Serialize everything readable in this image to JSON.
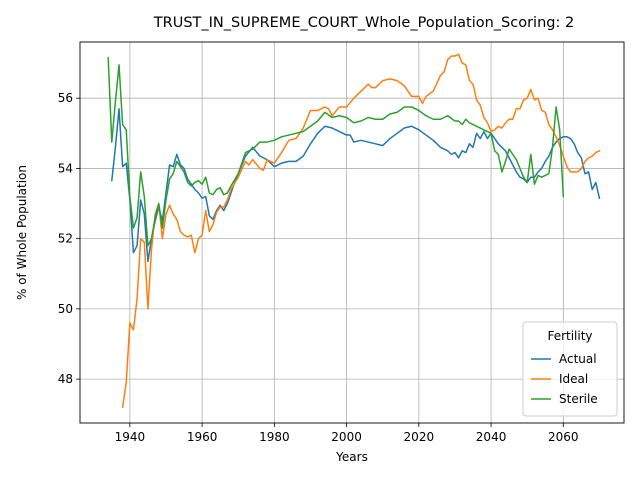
{
  "chart_data": {
    "type": "line",
    "title": "TRUST_IN_SUPREME_COURT_Whole_Population_Scoring: 2",
    "xlabel": "Years",
    "ylabel": "% of Whole Population",
    "xlim": [
      1926.2,
      2076.8
    ],
    "ylim": [
      46.75,
      57.6
    ],
    "xticks": [
      1940,
      1960,
      1980,
      2000,
      2020,
      2040,
      2060
    ],
    "yticks": [
      48,
      50,
      52,
      54,
      56
    ],
    "grid": true,
    "legend": {
      "title": "Fertility",
      "placement": "lower right"
    },
    "series": [
      {
        "name": "Actual",
        "color": "#1f77b4",
        "points": [
          [
            1935,
            53.65
          ],
          [
            1936,
            54.6
          ],
          [
            1937,
            55.7
          ],
          [
            1938,
            54.05
          ],
          [
            1939,
            54.15
          ],
          [
            1940,
            53.1
          ],
          [
            1941,
            51.6
          ],
          [
            1942,
            51.8
          ],
          [
            1943,
            53.1
          ],
          [
            1944,
            52.7
          ],
          [
            1945,
            51.35
          ],
          [
            1946,
            52.0
          ],
          [
            1947,
            52.5
          ],
          [
            1948,
            52.9
          ],
          [
            1949,
            52.5
          ],
          [
            1950,
            53.3
          ],
          [
            1951,
            54.1
          ],
          [
            1952,
            54.05
          ],
          [
            1953,
            54.4
          ],
          [
            1954,
            54.1
          ],
          [
            1955,
            54.0
          ],
          [
            1956,
            53.7
          ],
          [
            1957,
            53.55
          ],
          [
            1958,
            53.4
          ],
          [
            1959,
            53.3
          ],
          [
            1960,
            53.15
          ],
          [
            1961,
            53.2
          ],
          [
            1962,
            52.65
          ],
          [
            1963,
            52.55
          ],
          [
            1964,
            52.8
          ],
          [
            1965,
            52.95
          ],
          [
            1966,
            52.8
          ],
          [
            1967,
            53.0
          ],
          [
            1968,
            53.3
          ],
          [
            1969,
            53.6
          ],
          [
            1970,
            53.85
          ],
          [
            1972,
            54.35
          ],
          [
            1974,
            54.6
          ],
          [
            1976,
            54.35
          ],
          [
            1978,
            54.25
          ],
          [
            1980,
            54.05
          ],
          [
            1982,
            54.15
          ],
          [
            1984,
            54.2
          ],
          [
            1986,
            54.2
          ],
          [
            1988,
            54.35
          ],
          [
            1990,
            54.7
          ],
          [
            1992,
            55.0
          ],
          [
            1994,
            55.2
          ],
          [
            1996,
            55.15
          ],
          [
            1998,
            55.05
          ],
          [
            2000,
            54.95
          ],
          [
            2001,
            54.95
          ],
          [
            2002,
            54.75
          ],
          [
            2004,
            54.8
          ],
          [
            2006,
            54.75
          ],
          [
            2008,
            54.7
          ],
          [
            2010,
            54.65
          ],
          [
            2012,
            54.85
          ],
          [
            2014,
            55.0
          ],
          [
            2016,
            55.15
          ],
          [
            2018,
            55.2
          ],
          [
            2020,
            55.1
          ],
          [
            2022,
            54.95
          ],
          [
            2024,
            54.8
          ],
          [
            2026,
            54.6
          ],
          [
            2028,
            54.5
          ],
          [
            2029,
            54.4
          ],
          [
            2030,
            54.45
          ],
          [
            2031,
            54.3
          ],
          [
            2032,
            54.5
          ],
          [
            2033,
            54.45
          ],
          [
            2034,
            54.7
          ],
          [
            2035,
            54.6
          ],
          [
            2036,
            55.0
          ],
          [
            2037,
            54.85
          ],
          [
            2038,
            55.05
          ],
          [
            2039,
            54.85
          ],
          [
            2040,
            55.0
          ],
          [
            2041,
            54.85
          ],
          [
            2042,
            54.7
          ],
          [
            2043,
            54.6
          ],
          [
            2044,
            54.5
          ],
          [
            2045,
            54.3
          ],
          [
            2046,
            54.1
          ],
          [
            2047,
            53.9
          ],
          [
            2048,
            53.75
          ],
          [
            2049,
            53.7
          ],
          [
            2050,
            53.6
          ],
          [
            2051,
            53.75
          ],
          [
            2052,
            53.75
          ],
          [
            2053,
            53.9
          ],
          [
            2054,
            54.0
          ],
          [
            2055,
            54.2
          ],
          [
            2056,
            54.35
          ],
          [
            2057,
            54.6
          ],
          [
            2058,
            54.75
          ],
          [
            2059,
            54.85
          ],
          [
            2060,
            54.9
          ],
          [
            2061,
            54.9
          ],
          [
            2062,
            54.85
          ],
          [
            2063,
            54.7
          ],
          [
            2064,
            54.45
          ],
          [
            2065,
            54.3
          ],
          [
            2066,
            53.85
          ],
          [
            2067,
            53.9
          ],
          [
            2068,
            53.4
          ],
          [
            2069,
            53.6
          ],
          [
            2070,
            53.15
          ]
        ]
      },
      {
        "name": "Ideal",
        "color": "#ff7f0e",
        "points": [
          [
            1938,
            47.2
          ],
          [
            1939,
            47.9
          ],
          [
            1940,
            49.6
          ],
          [
            1941,
            49.4
          ],
          [
            1942,
            50.3
          ],
          [
            1943,
            52.0
          ],
          [
            1944,
            51.9
          ],
          [
            1945,
            50.0
          ],
          [
            1946,
            51.7
          ],
          [
            1947,
            52.7
          ],
          [
            1948,
            53.0
          ],
          [
            1949,
            52.0
          ],
          [
            1950,
            52.7
          ],
          [
            1951,
            52.95
          ],
          [
            1952,
            52.7
          ],
          [
            1953,
            52.55
          ],
          [
            1954,
            52.2
          ],
          [
            1955,
            52.1
          ],
          [
            1956,
            52.05
          ],
          [
            1957,
            52.1
          ],
          [
            1958,
            51.6
          ],
          [
            1959,
            52.0
          ],
          [
            1960,
            52.1
          ],
          [
            1961,
            52.8
          ],
          [
            1962,
            52.2
          ],
          [
            1963,
            52.4
          ],
          [
            1964,
            52.75
          ],
          [
            1965,
            52.9
          ],
          [
            1966,
            52.9
          ],
          [
            1967,
            53.1
          ],
          [
            1968,
            53.4
          ],
          [
            1970,
            53.75
          ],
          [
            1972,
            54.2
          ],
          [
            1973,
            54.1
          ],
          [
            1974,
            54.25
          ],
          [
            1976,
            54.0
          ],
          [
            1977,
            53.95
          ],
          [
            1978,
            54.25
          ],
          [
            1980,
            54.15
          ],
          [
            1982,
            54.45
          ],
          [
            1984,
            54.8
          ],
          [
            1986,
            54.85
          ],
          [
            1988,
            55.15
          ],
          [
            1990,
            55.65
          ],
          [
            1992,
            55.65
          ],
          [
            1994,
            55.75
          ],
          [
            1995,
            55.7
          ],
          [
            1996,
            55.5
          ],
          [
            1998,
            55.75
          ],
          [
            2000,
            55.75
          ],
          [
            2002,
            56.0
          ],
          [
            2004,
            56.2
          ],
          [
            2006,
            56.4
          ],
          [
            2007,
            56.3
          ],
          [
            2008,
            56.3
          ],
          [
            2010,
            56.5
          ],
          [
            2012,
            56.55
          ],
          [
            2014,
            56.5
          ],
          [
            2016,
            56.35
          ],
          [
            2018,
            56.05
          ],
          [
            2020,
            56.05
          ],
          [
            2021,
            55.85
          ],
          [
            2022,
            56.05
          ],
          [
            2024,
            56.2
          ],
          [
            2026,
            56.65
          ],
          [
            2027,
            56.75
          ],
          [
            2028,
            57.1
          ],
          [
            2029,
            57.2
          ],
          [
            2030,
            57.2
          ],
          [
            2031,
            57.25
          ],
          [
            2032,
            57.0
          ],
          [
            2033,
            56.95
          ],
          [
            2034,
            56.5
          ],
          [
            2035,
            56.4
          ],
          [
            2036,
            55.95
          ],
          [
            2037,
            55.8
          ],
          [
            2038,
            55.45
          ],
          [
            2039,
            55.3
          ],
          [
            2040,
            55.05
          ],
          [
            2041,
            55.1
          ],
          [
            2042,
            55.2
          ],
          [
            2043,
            55.15
          ],
          [
            2044,
            55.3
          ],
          [
            2045,
            55.4
          ],
          [
            2046,
            55.4
          ],
          [
            2047,
            55.7
          ],
          [
            2048,
            55.7
          ],
          [
            2049,
            55.95
          ],
          [
            2050,
            56.0
          ],
          [
            2051,
            56.25
          ],
          [
            2052,
            55.95
          ],
          [
            2053,
            56.0
          ],
          [
            2054,
            55.65
          ],
          [
            2055,
            55.6
          ],
          [
            2056,
            55.25
          ],
          [
            2057,
            55.1
          ],
          [
            2058,
            54.9
          ],
          [
            2059,
            54.65
          ],
          [
            2060,
            54.35
          ],
          [
            2061,
            54.05
          ],
          [
            2062,
            53.9
          ],
          [
            2063,
            53.9
          ],
          [
            2064,
            53.9
          ],
          [
            2065,
            54.0
          ],
          [
            2066,
            54.2
          ],
          [
            2067,
            54.3
          ],
          [
            2068,
            54.35
          ],
          [
            2069,
            54.45
          ],
          [
            2070,
            54.5
          ]
        ]
      },
      {
        "name": "Sterile",
        "color": "#2ca02c",
        "points": [
          [
            1934,
            57.15
          ],
          [
            1935,
            54.75
          ],
          [
            1936,
            55.9
          ],
          [
            1937,
            56.95
          ],
          [
            1938,
            55.25
          ],
          [
            1939,
            55.1
          ],
          [
            1940,
            53.2
          ],
          [
            1941,
            52.3
          ],
          [
            1942,
            52.6
          ],
          [
            1943,
            53.9
          ],
          [
            1944,
            53.2
          ],
          [
            1945,
            51.8
          ],
          [
            1946,
            52.0
          ],
          [
            1947,
            52.6
          ],
          [
            1948,
            53.0
          ],
          [
            1949,
            52.3
          ],
          [
            1950,
            53.1
          ],
          [
            1951,
            53.7
          ],
          [
            1952,
            53.85
          ],
          [
            1953,
            54.2
          ],
          [
            1954,
            54.05
          ],
          [
            1955,
            53.9
          ],
          [
            1956,
            53.6
          ],
          [
            1957,
            53.5
          ],
          [
            1958,
            53.6
          ],
          [
            1959,
            53.65
          ],
          [
            1960,
            53.55
          ],
          [
            1961,
            53.75
          ],
          [
            1962,
            53.3
          ],
          [
            1963,
            53.25
          ],
          [
            1964,
            53.4
          ],
          [
            1965,
            53.45
          ],
          [
            1966,
            53.25
          ],
          [
            1967,
            53.3
          ],
          [
            1968,
            53.5
          ],
          [
            1970,
            53.85
          ],
          [
            1972,
            54.45
          ],
          [
            1974,
            54.55
          ],
          [
            1976,
            54.75
          ],
          [
            1978,
            54.75
          ],
          [
            1980,
            54.8
          ],
          [
            1982,
            54.9
          ],
          [
            1984,
            54.95
          ],
          [
            1986,
            55.0
          ],
          [
            1988,
            55.05
          ],
          [
            1990,
            55.2
          ],
          [
            1992,
            55.35
          ],
          [
            1994,
            55.6
          ],
          [
            1996,
            55.45
          ],
          [
            1998,
            55.5
          ],
          [
            2000,
            55.45
          ],
          [
            2002,
            55.3
          ],
          [
            2004,
            55.35
          ],
          [
            2006,
            55.45
          ],
          [
            2008,
            55.4
          ],
          [
            2010,
            55.4
          ],
          [
            2012,
            55.55
          ],
          [
            2014,
            55.6
          ],
          [
            2016,
            55.75
          ],
          [
            2018,
            55.75
          ],
          [
            2020,
            55.65
          ],
          [
            2022,
            55.5
          ],
          [
            2024,
            55.4
          ],
          [
            2026,
            55.4
          ],
          [
            2028,
            55.5
          ],
          [
            2030,
            55.35
          ],
          [
            2031,
            55.35
          ],
          [
            2032,
            55.25
          ],
          [
            2033,
            55.4
          ],
          [
            2034,
            55.3
          ],
          [
            2036,
            55.2
          ],
          [
            2038,
            55.1
          ],
          [
            2039,
            55.05
          ],
          [
            2040,
            55.0
          ],
          [
            2041,
            54.5
          ],
          [
            2042,
            54.4
          ],
          [
            2043,
            53.9
          ],
          [
            2044,
            54.2
          ],
          [
            2045,
            54.55
          ],
          [
            2046,
            54.4
          ],
          [
            2047,
            54.25
          ],
          [
            2048,
            54.0
          ],
          [
            2049,
            53.75
          ],
          [
            2050,
            53.6
          ],
          [
            2051,
            54.4
          ],
          [
            2052,
            53.55
          ],
          [
            2053,
            53.8
          ],
          [
            2054,
            53.75
          ],
          [
            2055,
            53.8
          ],
          [
            2056,
            53.85
          ],
          [
            2057,
            54.6
          ],
          [
            2058,
            55.75
          ],
          [
            2059,
            55.1
          ],
          [
            2060,
            53.2
          ]
        ]
      }
    ]
  }
}
